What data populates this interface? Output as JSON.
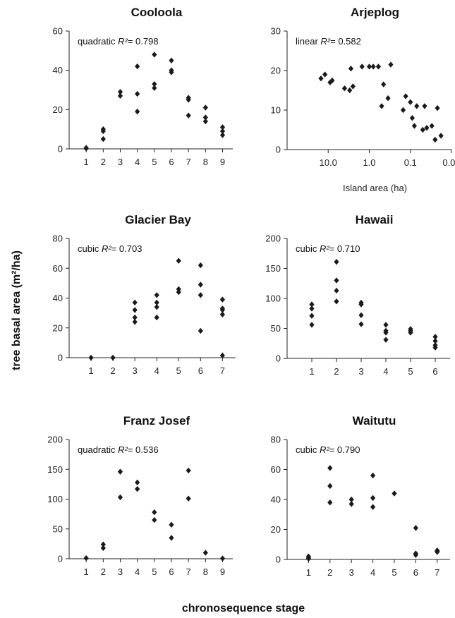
{
  "figure": {
    "y_axis_title": "tree basal area (m²/ha)",
    "x_axis_title": "chronosequence stage"
  },
  "chart_data": [
    {
      "type": "scatter",
      "title": "Cooloola",
      "fit_model": "quadratic",
      "fit_r2_label": "R²",
      "fit_r2_value": "= 0.798",
      "xlabel": "",
      "ylabel": "",
      "xlim": [
        0,
        9.6
      ],
      "ylim": [
        0,
        60
      ],
      "x_ticks": [
        1,
        2,
        3,
        4,
        5,
        6,
        7,
        8,
        9
      ],
      "x_tick_labels": [
        "1",
        "2",
        "3",
        "4",
        "5",
        "6",
        "7",
        "8",
        "9"
      ],
      "y_ticks": [
        0,
        20,
        40,
        60
      ],
      "y_tick_labels": [
        "0",
        "20",
        "40",
        "60"
      ],
      "points": [
        [
          1,
          0.5
        ],
        [
          1,
          0.2
        ],
        [
          2,
          10
        ],
        [
          2,
          9
        ],
        [
          2,
          5
        ],
        [
          3,
          29
        ],
        [
          3,
          27
        ],
        [
          4,
          42
        ],
        [
          4,
          28
        ],
        [
          4,
          19
        ],
        [
          5,
          48
        ],
        [
          5,
          33
        ],
        [
          5,
          31
        ],
        [
          6,
          45
        ],
        [
          6,
          40
        ],
        [
          6,
          39
        ],
        [
          7,
          26
        ],
        [
          7,
          25
        ],
        [
          7,
          17
        ],
        [
          8,
          21
        ],
        [
          8,
          16
        ],
        [
          8,
          14
        ],
        [
          9,
          11
        ],
        [
          9,
          9
        ],
        [
          9,
          7
        ]
      ]
    },
    {
      "type": "scatter",
      "title": "Arjeplog",
      "fit_model": "linear",
      "fit_r2_label": "R²",
      "fit_r2_value": "= 0.582",
      "xlabel": "Island area (ha)",
      "ylabel": "",
      "x_scale": "log-reversed",
      "xlim": [
        100,
        0.01
      ],
      "ylim": [
        0,
        30
      ],
      "x_ticks": [
        10,
        1,
        0.1,
        0.01
      ],
      "x_tick_labels": [
        "10.0",
        "1.0",
        "0.1",
        "0.01"
      ],
      "y_ticks": [
        0,
        10,
        20,
        30
      ],
      "y_tick_labels": [
        "0",
        "10",
        "20",
        "30"
      ],
      "points": [
        [
          15,
          18
        ],
        [
          12,
          19
        ],
        [
          9,
          17
        ],
        [
          8,
          17.5
        ],
        [
          4,
          15.5
        ],
        [
          3,
          15
        ],
        [
          2.8,
          20.5
        ],
        [
          2.5,
          16
        ],
        [
          1.5,
          21
        ],
        [
          1,
          21
        ],
        [
          0.8,
          21
        ],
        [
          0.6,
          21
        ],
        [
          0.5,
          11
        ],
        [
          0.45,
          16.5
        ],
        [
          0.35,
          13
        ],
        [
          0.3,
          21.5
        ],
        [
          0.15,
          10
        ],
        [
          0.13,
          13.5
        ],
        [
          0.1,
          12
        ],
        [
          0.09,
          8
        ],
        [
          0.08,
          6
        ],
        [
          0.07,
          11
        ],
        [
          0.05,
          5
        ],
        [
          0.045,
          11
        ],
        [
          0.04,
          5.5
        ],
        [
          0.03,
          6
        ],
        [
          0.025,
          2.5
        ],
        [
          0.022,
          10.5
        ],
        [
          0.018,
          3.5
        ]
      ]
    },
    {
      "type": "scatter",
      "title": "Glacier Bay",
      "fit_model": "cubic",
      "fit_r2_label": "R²",
      "fit_r2_value": "= 0.703",
      "xlabel": "",
      "ylabel": "",
      "xlim": [
        0,
        7.6
      ],
      "ylim": [
        0,
        80
      ],
      "x_ticks": [
        1,
        2,
        3,
        4,
        5,
        6,
        7
      ],
      "x_tick_labels": [
        "1",
        "2",
        "3",
        "4",
        "5",
        "6",
        "7"
      ],
      "y_ticks": [
        0,
        20,
        40,
        60,
        80
      ],
      "y_tick_labels": [
        "0",
        "20",
        "40",
        "60",
        "80"
      ],
      "points": [
        [
          1,
          0
        ],
        [
          2,
          0
        ],
        [
          3,
          37
        ],
        [
          3,
          32
        ],
        [
          3,
          27
        ],
        [
          3,
          24
        ],
        [
          4,
          42
        ],
        [
          4,
          37
        ],
        [
          4,
          34
        ],
        [
          4,
          27
        ],
        [
          5,
          65
        ],
        [
          5,
          46
        ],
        [
          5,
          44
        ],
        [
          6,
          62
        ],
        [
          6,
          49
        ],
        [
          6,
          42
        ],
        [
          6,
          18
        ],
        [
          7,
          39
        ],
        [
          7,
          33
        ],
        [
          7,
          32
        ],
        [
          7,
          29
        ],
        [
          7,
          1.5
        ]
      ]
    },
    {
      "type": "scatter",
      "title": "Hawaii",
      "fit_model": "cubic",
      "fit_r2_label": "R²",
      "fit_r2_value": "= 0.710",
      "xlabel": "",
      "ylabel": "",
      "xlim": [
        0,
        6.6
      ],
      "ylim": [
        0,
        200
      ],
      "x_ticks": [
        1,
        2,
        3,
        4,
        5,
        6
      ],
      "x_tick_labels": [
        "1",
        "2",
        "3",
        "4",
        "5",
        "6"
      ],
      "y_ticks": [
        0,
        50,
        100,
        150,
        200
      ],
      "y_tick_labels": [
        "0",
        "50",
        "100",
        "150",
        "200"
      ],
      "points": [
        [
          1,
          90
        ],
        [
          1,
          83
        ],
        [
          1,
          71
        ],
        [
          1,
          56
        ],
        [
          2,
          161
        ],
        [
          2,
          130
        ],
        [
          2,
          113
        ],
        [
          2,
          95
        ],
        [
          3,
          93
        ],
        [
          3,
          90
        ],
        [
          3,
          72
        ],
        [
          3,
          57
        ],
        [
          4,
          56
        ],
        [
          4,
          46
        ],
        [
          4,
          43
        ],
        [
          4,
          31
        ],
        [
          5,
          49
        ],
        [
          5,
          46
        ],
        [
          5,
          43
        ],
        [
          6,
          36
        ],
        [
          6,
          29
        ],
        [
          6,
          22
        ],
        [
          6,
          18
        ]
      ]
    },
    {
      "type": "scatter",
      "title": "Franz Josef",
      "fit_model": "quadratic",
      "fit_r2_label": "R²",
      "fit_r2_value": "= 0.536",
      "xlabel": "",
      "ylabel": "",
      "xlim": [
        0,
        9.6
      ],
      "ylim": [
        0,
        200
      ],
      "x_ticks": [
        1,
        2,
        3,
        4,
        5,
        6,
        7,
        8,
        9
      ],
      "x_tick_labels": [
        "1",
        "2",
        "3",
        "4",
        "5",
        "6",
        "7",
        "8",
        "9"
      ],
      "y_ticks": [
        0,
        50,
        100,
        150,
        200
      ],
      "y_tick_labels": [
        "0",
        "50",
        "100",
        "150",
        "200"
      ],
      "points": [
        [
          1,
          1
        ],
        [
          2,
          24
        ],
        [
          2,
          18
        ],
        [
          3,
          146
        ],
        [
          3,
          103
        ],
        [
          4,
          128
        ],
        [
          4,
          117
        ],
        [
          5,
          78
        ],
        [
          5,
          65
        ],
        [
          6,
          57
        ],
        [
          6,
          35
        ],
        [
          7,
          148
        ],
        [
          7,
          101
        ],
        [
          8,
          10
        ],
        [
          9,
          0.5
        ]
      ]
    },
    {
      "type": "scatter",
      "title": "Waitutu",
      "fit_model": "cubic",
      "fit_r2_label": "R²",
      "fit_r2_value": "= 0.790",
      "xlabel": "",
      "ylabel": "",
      "xlim": [
        0,
        7.6
      ],
      "ylim": [
        0,
        80
      ],
      "x_ticks": [
        1,
        2,
        3,
        4,
        5,
        6,
        7
      ],
      "x_tick_labels": [
        "1",
        "2",
        "3",
        "4",
        "5",
        "6",
        "7"
      ],
      "y_ticks": [
        0,
        20,
        40,
        60,
        80
      ],
      "y_tick_labels": [
        "0",
        "20",
        "40",
        "60",
        "80"
      ],
      "points": [
        [
          1,
          2
        ],
        [
          1,
          1
        ],
        [
          1,
          0.5
        ],
        [
          2,
          61
        ],
        [
          2,
          49
        ],
        [
          2,
          38
        ],
        [
          3,
          40
        ],
        [
          3,
          37
        ],
        [
          4,
          56
        ],
        [
          4,
          41
        ],
        [
          4,
          35
        ],
        [
          5,
          44
        ],
        [
          6,
          21
        ],
        [
          6,
          4
        ],
        [
          6,
          3
        ],
        [
          7,
          6
        ],
        [
          7,
          5.5
        ],
        [
          7,
          5
        ]
      ]
    }
  ]
}
